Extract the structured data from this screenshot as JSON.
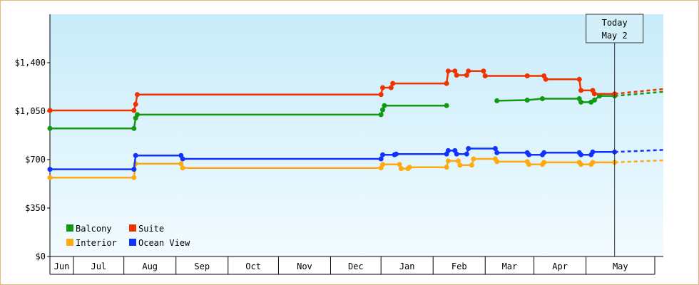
{
  "chart_data": {
    "type": "line",
    "step": true,
    "title": "",
    "xlabel": "",
    "ylabel": "",
    "ylim": [
      0,
      1750
    ],
    "yticks": [
      0,
      350,
      700,
      1050,
      1400
    ],
    "ytick_labels": [
      "$0",
      "$350",
      "$700",
      "$1,050",
      "$1,400"
    ],
    "xlim": [
      "2023-06-01",
      "2024-05-31"
    ],
    "months": [
      {
        "label": "Jun",
        "start": "2023-06-01",
        "end": "2023-06-15"
      },
      {
        "label": "Jul",
        "start": "2023-06-15",
        "end": "2023-07-15"
      },
      {
        "label": "Aug",
        "start": "2023-07-15",
        "end": "2023-08-15"
      },
      {
        "label": "Sep",
        "start": "2023-08-15",
        "end": "2023-09-15"
      },
      {
        "label": "Oct",
        "start": "2023-09-15",
        "end": "2023-10-15"
      },
      {
        "label": "Nov",
        "start": "2023-10-15",
        "end": "2023-11-15"
      },
      {
        "label": "Dec",
        "start": "2023-11-15",
        "end": "2023-12-15"
      },
      {
        "label": "Jan",
        "start": "2023-12-15",
        "end": "2024-01-15"
      },
      {
        "label": "Feb",
        "start": "2024-01-15",
        "end": "2024-02-15"
      },
      {
        "label": "Mar",
        "start": "2024-02-15",
        "end": "2024-03-15"
      },
      {
        "label": "Apr",
        "start": "2024-03-15",
        "end": "2024-04-15"
      },
      {
        "label": "May",
        "start": "2024-04-15",
        "end": "2024-05-31"
      }
    ],
    "today": {
      "line1": "Today",
      "line2": "May 2",
      "date": "2024-05-02"
    },
    "legend": {
      "position": "bottom-left"
    },
    "background": {
      "top": "#c8ecfa",
      "bottom": "#f2fbff"
    },
    "series": [
      {
        "name": "Balcony",
        "color": "#119911",
        "points": [
          [
            "2023-06-01",
            925
          ],
          [
            "2023-07-21",
            925
          ],
          [
            "2023-07-22",
            1000
          ],
          [
            "2023-07-23",
            1025
          ],
          [
            "2023-12-15",
            1025
          ],
          [
            "2023-12-16",
            1060
          ],
          [
            "2023-12-17",
            1090
          ],
          [
            "2024-01-23",
            1090
          ],
          [
            null,
            null
          ],
          [
            "2024-02-22",
            1125
          ],
          [
            "2024-03-11",
            1130
          ],
          [
            "2024-03-20",
            1140
          ],
          [
            "2024-04-11",
            1140
          ],
          [
            "2024-04-12",
            1115
          ],
          [
            "2024-04-18",
            1115
          ],
          [
            "2024-04-20",
            1130
          ],
          [
            "2024-04-23",
            1160
          ],
          [
            "2024-05-02",
            1160
          ]
        ],
        "forecast": [
          [
            "2024-05-02",
            1160
          ],
          [
            "2024-05-31",
            1190
          ]
        ]
      },
      {
        "name": "Suite",
        "color": "#ee3300",
        "points": [
          [
            "2023-06-01",
            1055
          ],
          [
            "2023-07-21",
            1055
          ],
          [
            "2023-07-22",
            1100
          ],
          [
            "2023-07-23",
            1170
          ],
          [
            "2023-12-15",
            1170
          ],
          [
            "2023-12-16",
            1220
          ],
          [
            "2023-12-21",
            1220
          ],
          [
            "2023-12-22",
            1250
          ],
          [
            "2024-01-23",
            1250
          ],
          [
            "2024-01-24",
            1340
          ],
          [
            "2024-01-28",
            1340
          ],
          [
            "2024-01-29",
            1310
          ],
          [
            "2024-02-04",
            1310
          ],
          [
            "2024-02-05",
            1340
          ],
          [
            "2024-02-14",
            1340
          ],
          [
            "2024-02-15",
            1305
          ],
          [
            "2024-03-11",
            1305
          ],
          [
            "2024-03-21",
            1305
          ],
          [
            "2024-03-22",
            1280
          ],
          [
            "2024-04-11",
            1280
          ],
          [
            "2024-04-12",
            1200
          ],
          [
            "2024-04-19",
            1200
          ],
          [
            "2024-04-20",
            1175
          ],
          [
            "2024-05-02",
            1175
          ]
        ],
        "forecast": [
          [
            "2024-05-02",
            1175
          ],
          [
            "2024-05-31",
            1210
          ]
        ]
      },
      {
        "name": "Interior",
        "color": "#ffaa11",
        "points": [
          [
            "2023-06-01",
            570
          ],
          [
            "2023-07-21",
            570
          ],
          [
            "2023-07-22",
            670
          ],
          [
            "2023-08-18",
            670
          ],
          [
            "2023-08-19",
            640
          ],
          [
            "2023-12-15",
            640
          ],
          [
            "2023-12-16",
            665
          ],
          [
            "2023-12-26",
            665
          ],
          [
            "2023-12-27",
            635
          ],
          [
            "2023-12-31",
            635
          ],
          [
            "2024-01-01",
            645
          ],
          [
            "2024-01-23",
            645
          ],
          [
            "2024-01-24",
            690
          ],
          [
            "2024-01-30",
            690
          ],
          [
            "2024-01-31",
            660
          ],
          [
            "2024-02-07",
            660
          ],
          [
            "2024-02-08",
            705
          ],
          [
            "2024-02-21",
            705
          ],
          [
            "2024-02-22",
            685
          ],
          [
            "2024-03-11",
            685
          ],
          [
            "2024-03-12",
            665
          ],
          [
            "2024-03-20",
            665
          ],
          [
            "2024-03-21",
            680
          ],
          [
            "2024-04-11",
            680
          ],
          [
            "2024-04-12",
            665
          ],
          [
            "2024-04-18",
            665
          ],
          [
            "2024-04-19",
            680
          ],
          [
            "2024-05-02",
            680
          ]
        ],
        "forecast": [
          [
            "2024-05-02",
            680
          ],
          [
            "2024-05-31",
            695
          ]
        ]
      },
      {
        "name": "Ocean View",
        "color": "#1133ff",
        "points": [
          [
            "2023-06-01",
            630
          ],
          [
            "2023-07-21",
            630
          ],
          [
            "2023-07-22",
            730
          ],
          [
            "2023-08-18",
            730
          ],
          [
            "2023-08-19",
            705
          ],
          [
            "2023-12-15",
            705
          ],
          [
            "2023-12-16",
            735
          ],
          [
            "2023-12-23",
            735
          ],
          [
            "2023-12-24",
            740
          ],
          [
            "2024-01-23",
            740
          ],
          [
            "2024-01-24",
            765
          ],
          [
            "2024-01-28",
            765
          ],
          [
            "2024-01-29",
            740
          ],
          [
            "2024-02-04",
            740
          ],
          [
            "2024-02-05",
            780
          ],
          [
            "2024-02-21",
            780
          ],
          [
            "2024-02-22",
            750
          ],
          [
            "2024-03-11",
            750
          ],
          [
            "2024-03-12",
            735
          ],
          [
            "2024-03-20",
            735
          ],
          [
            "2024-03-21",
            750
          ],
          [
            "2024-04-11",
            750
          ],
          [
            "2024-04-12",
            735
          ],
          [
            "2024-04-18",
            735
          ],
          [
            "2024-04-19",
            755
          ],
          [
            "2024-05-02",
            755
          ]
        ],
        "forecast": [
          [
            "2024-05-02",
            755
          ],
          [
            "2024-05-31",
            770
          ]
        ]
      }
    ]
  }
}
